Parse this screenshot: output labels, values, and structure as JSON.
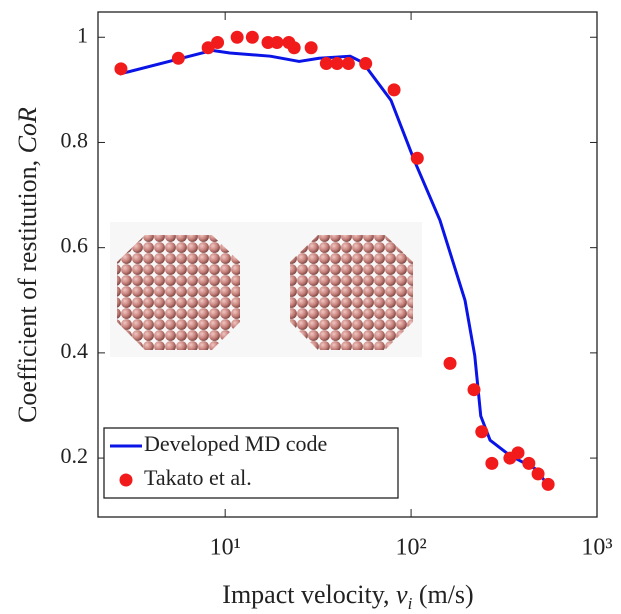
{
  "chart_data": {
    "type": "line",
    "y_label": [
      "Coefficient of restitution, ",
      "CoR"
    ],
    "x_label": [
      "Impact velocity, ",
      "v",
      "i",
      " (m/s)"
    ],
    "xscale": "log",
    "xlim": [
      2.07,
      1000
    ],
    "ylim": [
      0.088,
      1.048
    ],
    "xticks": [
      {
        "value": 10,
        "label": "10¹"
      },
      {
        "value": 100,
        "label": "10²"
      },
      {
        "value": 1000,
        "label": "10³"
      }
    ],
    "yticks": [
      0.2,
      0.4,
      0.6,
      0.8,
      1
    ],
    "legend_loc": "lower left",
    "series": [
      {
        "name": "Developed MD code",
        "style": "line",
        "color": "#0a14e6",
        "x": [
          2.7,
          8.5,
          10.6,
          17.5,
          25,
          32,
          47,
          55,
          78,
          104,
          143,
          195,
          220,
          237,
          266,
          340,
          464,
          520
        ],
        "values": [
          0.93,
          0.975,
          0.97,
          0.964,
          0.954,
          0.96,
          0.964,
          0.952,
          0.88,
          0.766,
          0.652,
          0.5,
          0.395,
          0.28,
          0.234,
          0.205,
          0.18,
          0.158
        ]
      },
      {
        "name": "Takato et al.",
        "style": "marker",
        "color": "#f21b1b",
        "x": [
          2.75,
          5.6,
          8.1,
          9.1,
          11.6,
          14,
          17,
          19,
          22,
          23.5,
          29,
          35,
          40,
          46,
          57,
          81,
          108,
          162,
          218,
          240,
          272,
          340,
          376,
          430,
          482,
          546
        ],
        "values": [
          0.94,
          0.96,
          0.98,
          0.99,
          1.0,
          1.0,
          0.99,
          0.99,
          0.99,
          0.98,
          0.98,
          0.95,
          0.95,
          0.95,
          0.95,
          0.9,
          0.77,
          0.38,
          0.33,
          0.25,
          0.19,
          0.2,
          0.21,
          0.19,
          0.17,
          0.15
        ]
      }
    ]
  }
}
